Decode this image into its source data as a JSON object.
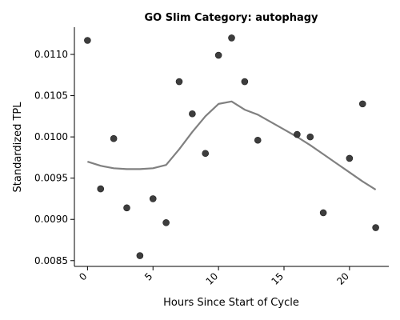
{
  "chart_data": {
    "type": "scatter",
    "title": "GO Slim Category: autophagy",
    "xlabel": "Hours Since Start of Cycle",
    "ylabel": "Standardized TPL",
    "xlim": [
      -1,
      23
    ],
    "ylim": [
      0.00843,
      0.01133
    ],
    "xticks": [
      0,
      5,
      10,
      15,
      20
    ],
    "xtick_labels": [
      "0",
      "5",
      "10",
      "15",
      "20"
    ],
    "yticks": [
      0.0085,
      0.009,
      0.0095,
      0.01,
      0.0105,
      0.011
    ],
    "ytick_labels": [
      "0.0085",
      "0.0090",
      "0.0095",
      "0.0100",
      "0.0105",
      "0.0110"
    ],
    "grid": false,
    "points": {
      "color": "#333333",
      "x": [
        0,
        1,
        2,
        3,
        4,
        5,
        6,
        7,
        8,
        9,
        10,
        11,
        12,
        13,
        16,
        17,
        18,
        20,
        21,
        22
      ],
      "y": [
        0.01117,
        0.00937,
        0.00998,
        0.00914,
        0.00856,
        0.00925,
        0.00896,
        0.01067,
        0.01028,
        0.0098,
        0.01099,
        0.0112,
        0.01067,
        0.00996,
        0.01003,
        0.01,
        0.00908,
        0.00974,
        0.0104,
        0.0089
      ]
    },
    "trend": {
      "color": "#808080",
      "x": [
        0,
        1,
        2,
        3,
        4,
        5,
        6,
        7,
        8,
        9,
        10,
        11,
        12,
        13,
        14,
        15,
        16,
        17,
        18,
        19,
        20,
        21,
        22
      ],
      "y": [
        0.0097,
        0.00965,
        0.00962,
        0.00961,
        0.00961,
        0.00962,
        0.00966,
        0.00985,
        0.01006,
        0.01025,
        0.0104,
        0.01043,
        0.01033,
        0.01027,
        0.01018,
        0.01009,
        0.01,
        0.0099,
        0.00979,
        0.00968,
        0.00957,
        0.00946,
        0.00936
      ]
    }
  }
}
